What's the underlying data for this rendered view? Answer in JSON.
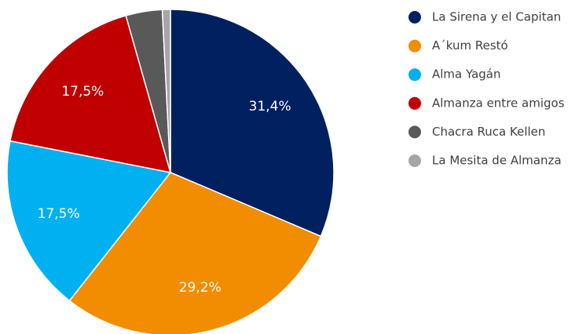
{
  "chart_data": {
    "type": "pie",
    "categories": [
      "La Sirena y el Capitan",
      "A´kum Restó",
      "Alma Yagán",
      "Almanza entre amigos",
      "Chacra Ruca Kellen",
      "La Mesita de Almanza"
    ],
    "values": [
      31.4,
      29.2,
      17.5,
      17.5,
      3.6,
      0.8
    ],
    "value_labels": [
      "31,4%",
      "29,2%",
      "17,5%",
      "17,5%",
      null,
      null
    ],
    "colors": [
      "#002060",
      "#f28c00",
      "#00b0f0",
      "#c00000",
      "#595959",
      "#a6a6a6"
    ],
    "legend": "right"
  }
}
